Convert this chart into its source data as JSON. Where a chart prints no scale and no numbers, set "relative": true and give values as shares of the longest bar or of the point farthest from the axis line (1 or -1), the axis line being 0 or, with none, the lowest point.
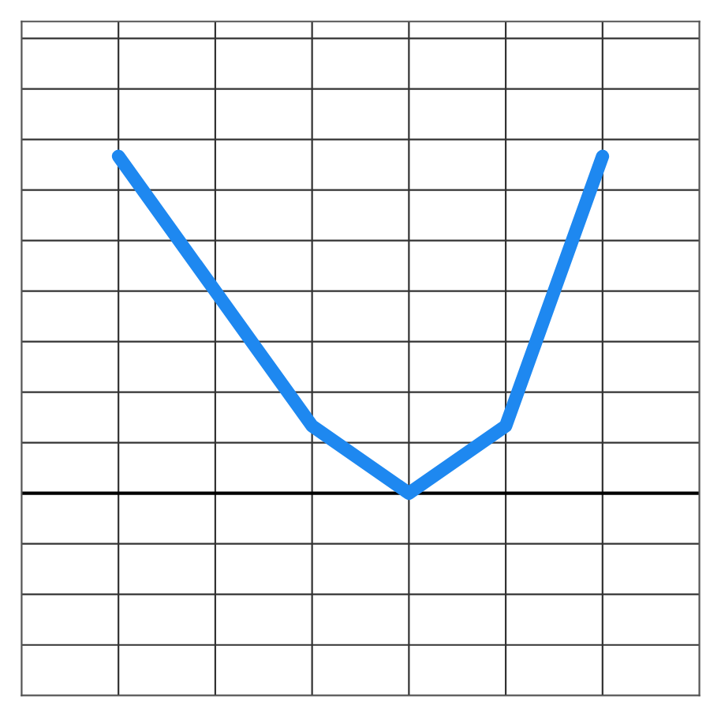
{
  "chart_data": {
    "type": "line",
    "relative": true,
    "categories": [
      null,
      null,
      null,
      null,
      null,
      null
    ],
    "series": [
      {
        "color": "#1e88f0",
        "values": [
          1.0,
          0.6,
          0.2,
          0,
          0.2,
          1.0
        ]
      }
    ],
    "grid": true,
    "legend": false,
    "line_style": "solid"
  }
}
